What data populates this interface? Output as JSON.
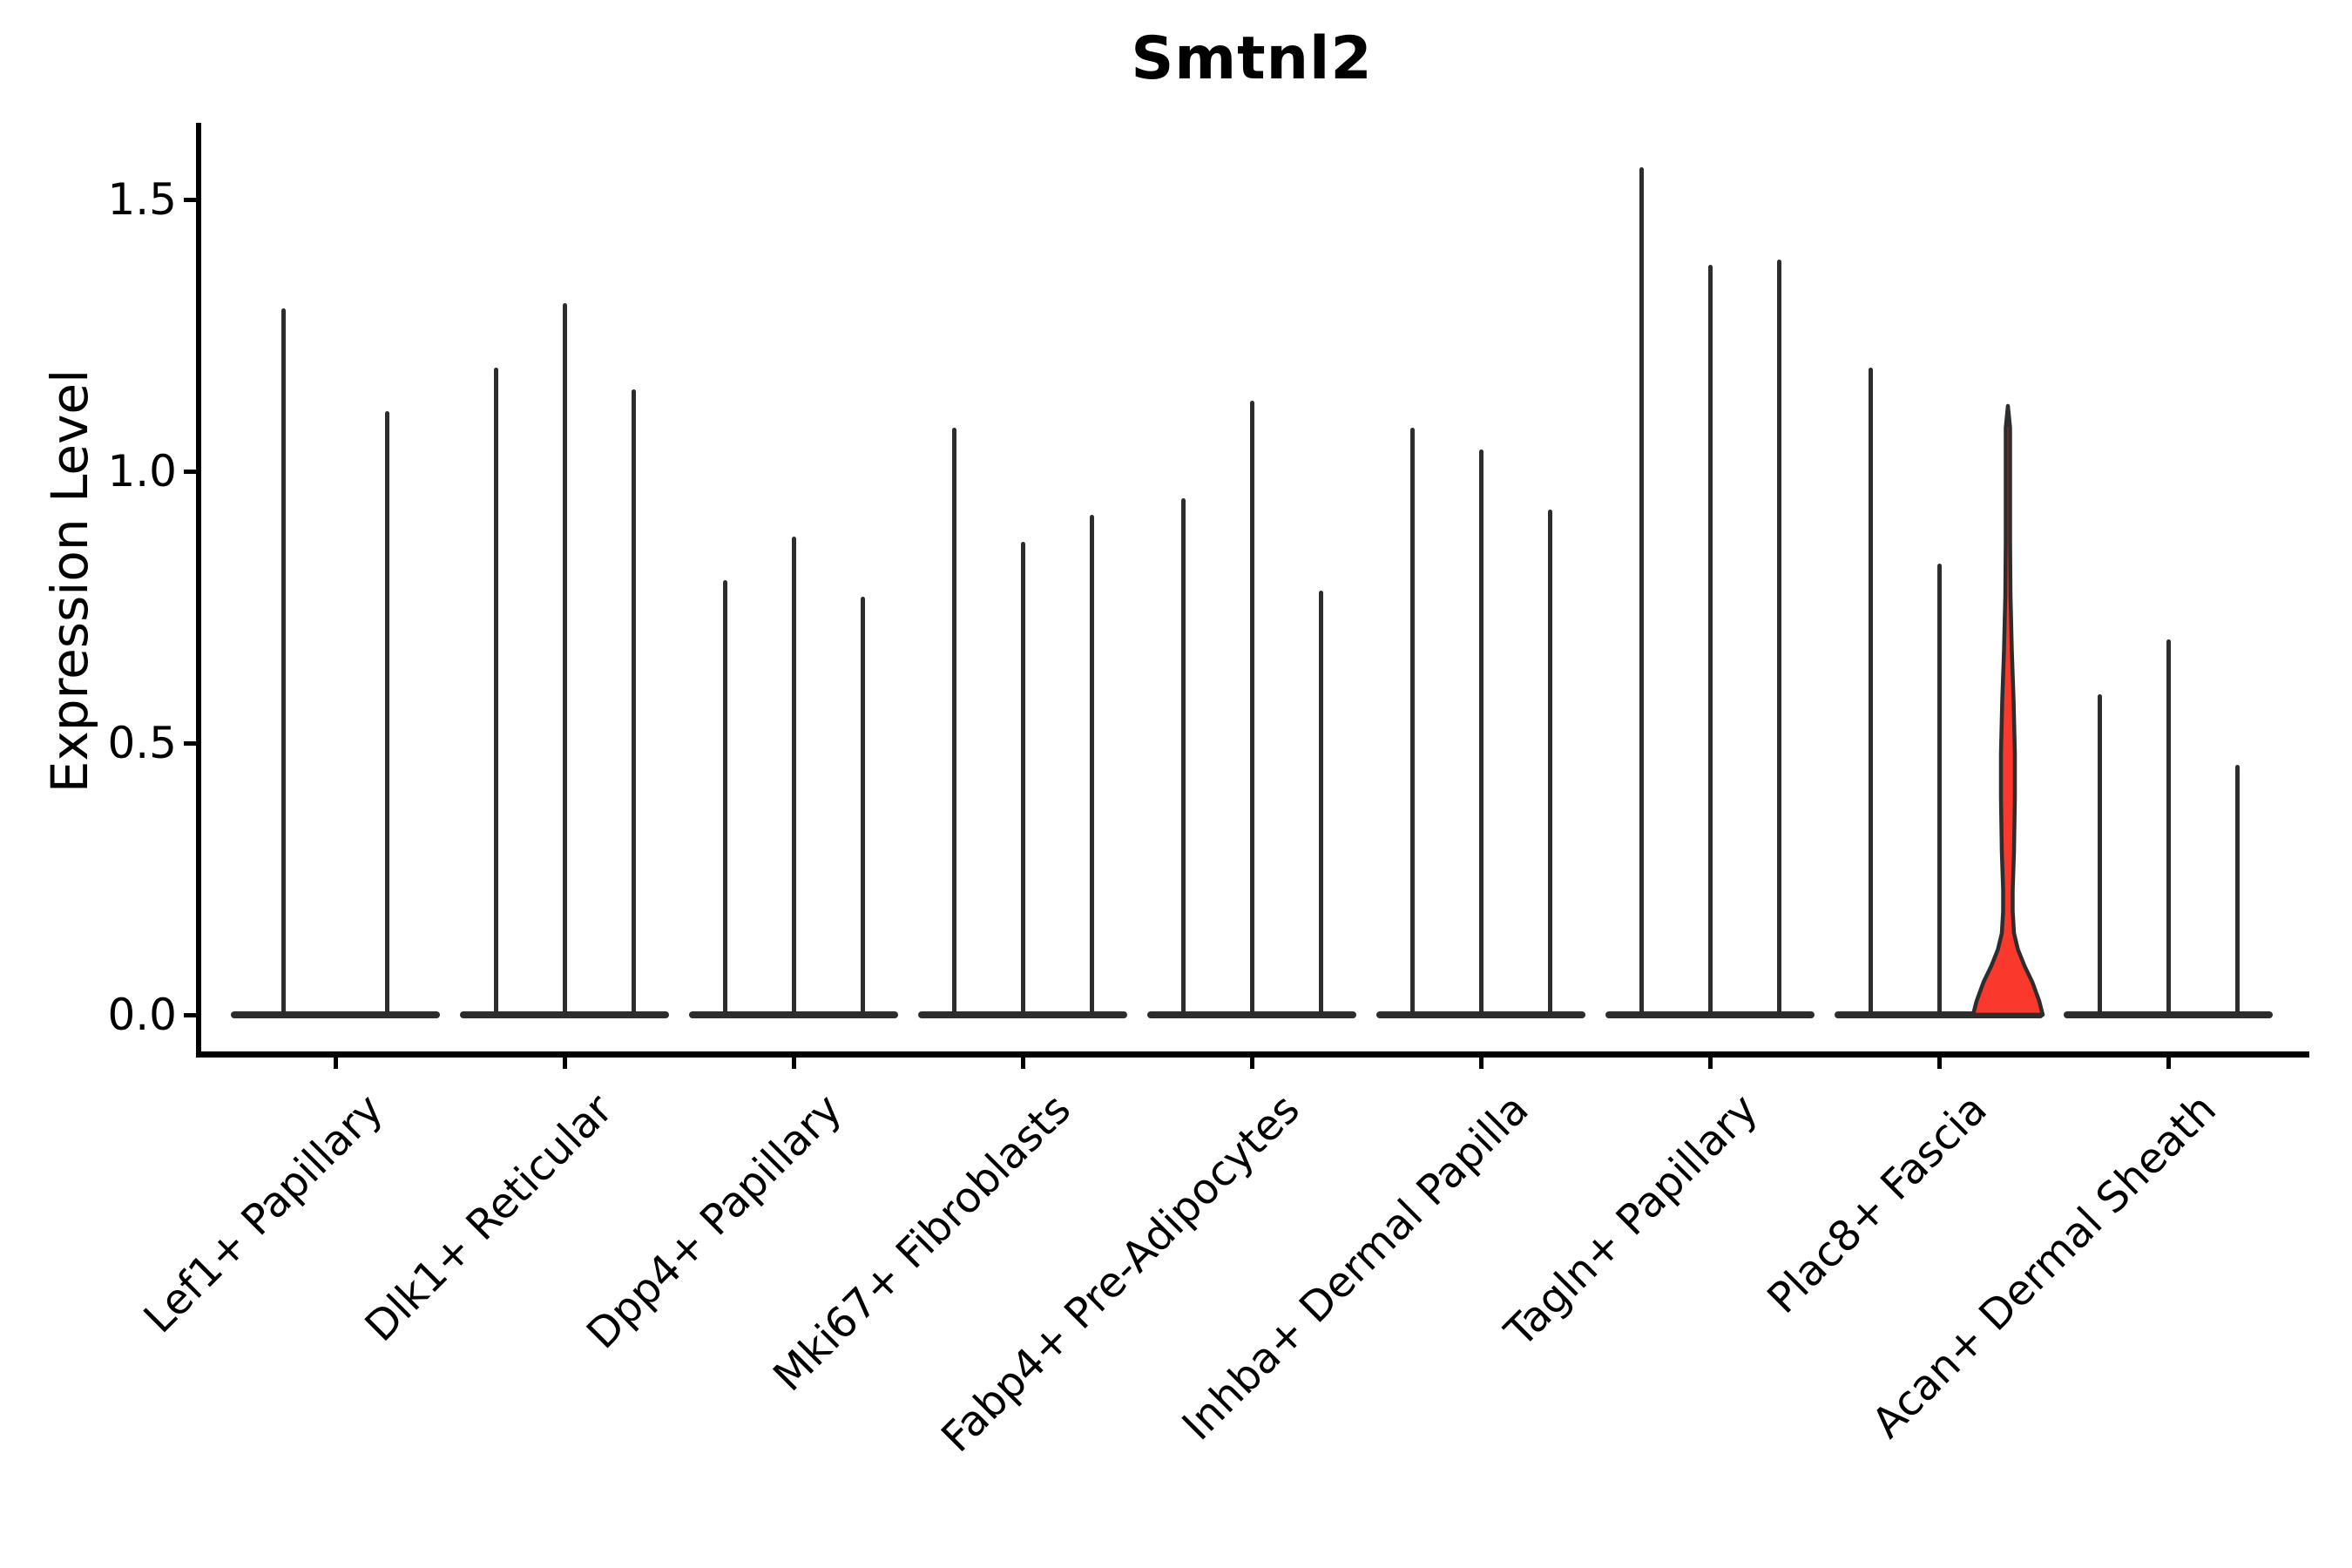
{
  "title": "Smtnl2",
  "y_axis": {
    "label": "Expression Level",
    "tick_labels": [
      "0.0",
      "0.5",
      "1.0",
      "1.5"
    ]
  },
  "colors": {
    "line": "#2d2d2d",
    "axis": "#000000",
    "highlight_fill": "#fa382b"
  },
  "chart_data": {
    "type": "violin",
    "title": "Smtnl2",
    "xlabel": "",
    "ylabel": "Expression Level",
    "yticks": [
      0.0,
      0.5,
      1.0,
      1.5
    ],
    "ylim": [
      -0.07,
      1.64
    ],
    "grid": false,
    "legend": "none",
    "description": "Expression-level violin plot; each category shows 2-3 near-zero-density violins that appear as a flat baseline bar with a thin spike up to the max expression value; one violin in Plac8+ Fascia is highlighted red with a visible density bulge near zero and mid-range.",
    "categories": [
      "Lef1+ Papillary",
      "Dlk1+ Reticular",
      "Dpp4+ Papillary",
      "Mki67+ Fibroblasts",
      "Fabp4+ Pre-Adipocytes",
      "Inhba+ Dermal Papilla",
      "Tagln+ Papillary",
      "Plac8+ Fascia",
      "Acan+ Dermal Sheath"
    ],
    "groups": [
      {
        "label": "Lef1+ Papillary",
        "violins": [
          {
            "max": 1.3
          },
          {
            "max": 1.11
          }
        ]
      },
      {
        "label": "Dlk1+ Reticular",
        "violins": [
          {
            "max": 1.19
          },
          {
            "max": 1.31
          },
          {
            "max": 1.15
          }
        ]
      },
      {
        "label": "Dpp4+ Papillary",
        "violins": [
          {
            "max": 0.8
          },
          {
            "max": 0.88
          },
          {
            "max": 0.77
          }
        ]
      },
      {
        "label": "Mki67+ Fibroblasts",
        "violins": [
          {
            "max": 1.08
          },
          {
            "max": 0.87
          },
          {
            "max": 0.92
          }
        ]
      },
      {
        "label": "Fabp4+ Pre-Adipocytes",
        "violins": [
          {
            "max": 0.95
          },
          {
            "max": 1.13
          },
          {
            "max": 0.78
          }
        ]
      },
      {
        "label": "Inhba+ Dermal Papilla",
        "violins": [
          {
            "max": 1.08
          },
          {
            "max": 1.04
          },
          {
            "max": 0.93
          }
        ]
      },
      {
        "label": "Tagln+ Papillary",
        "violins": [
          {
            "max": 1.56
          },
          {
            "max": 1.38
          },
          {
            "max": 1.39
          }
        ]
      },
      {
        "label": "Plac8+ Fascia",
        "violins": [
          {
            "max": 1.19
          },
          {
            "max": 0.83
          },
          {
            "max": 1.12,
            "highlighted": true,
            "profile": [
              [
                0.0,
                40.0
              ],
              [
                0.025,
                36.0
              ],
              [
                0.06,
                28.0
              ],
              [
                0.09,
                19.0
              ],
              [
                0.12,
                11.5
              ],
              [
                0.15,
                7.0
              ],
              [
                0.19,
                5.5
              ],
              [
                0.23,
                5.5
              ],
              [
                0.3,
                7.0
              ],
              [
                0.4,
                8.0
              ],
              [
                0.48,
                8.0
              ],
              [
                0.58,
                6.5
              ],
              [
                0.67,
                4.5
              ],
              [
                0.77,
                3.0
              ],
              [
                0.87,
                2.5
              ],
              [
                1.0,
                2.5
              ],
              [
                1.08,
                2.5
              ]
            ]
          }
        ]
      },
      {
        "label": "Acan+ Dermal Sheath",
        "violins": [
          {
            "max": 0.59
          },
          {
            "max": 0.69
          },
          {
            "max": 0.46
          }
        ]
      }
    ]
  }
}
